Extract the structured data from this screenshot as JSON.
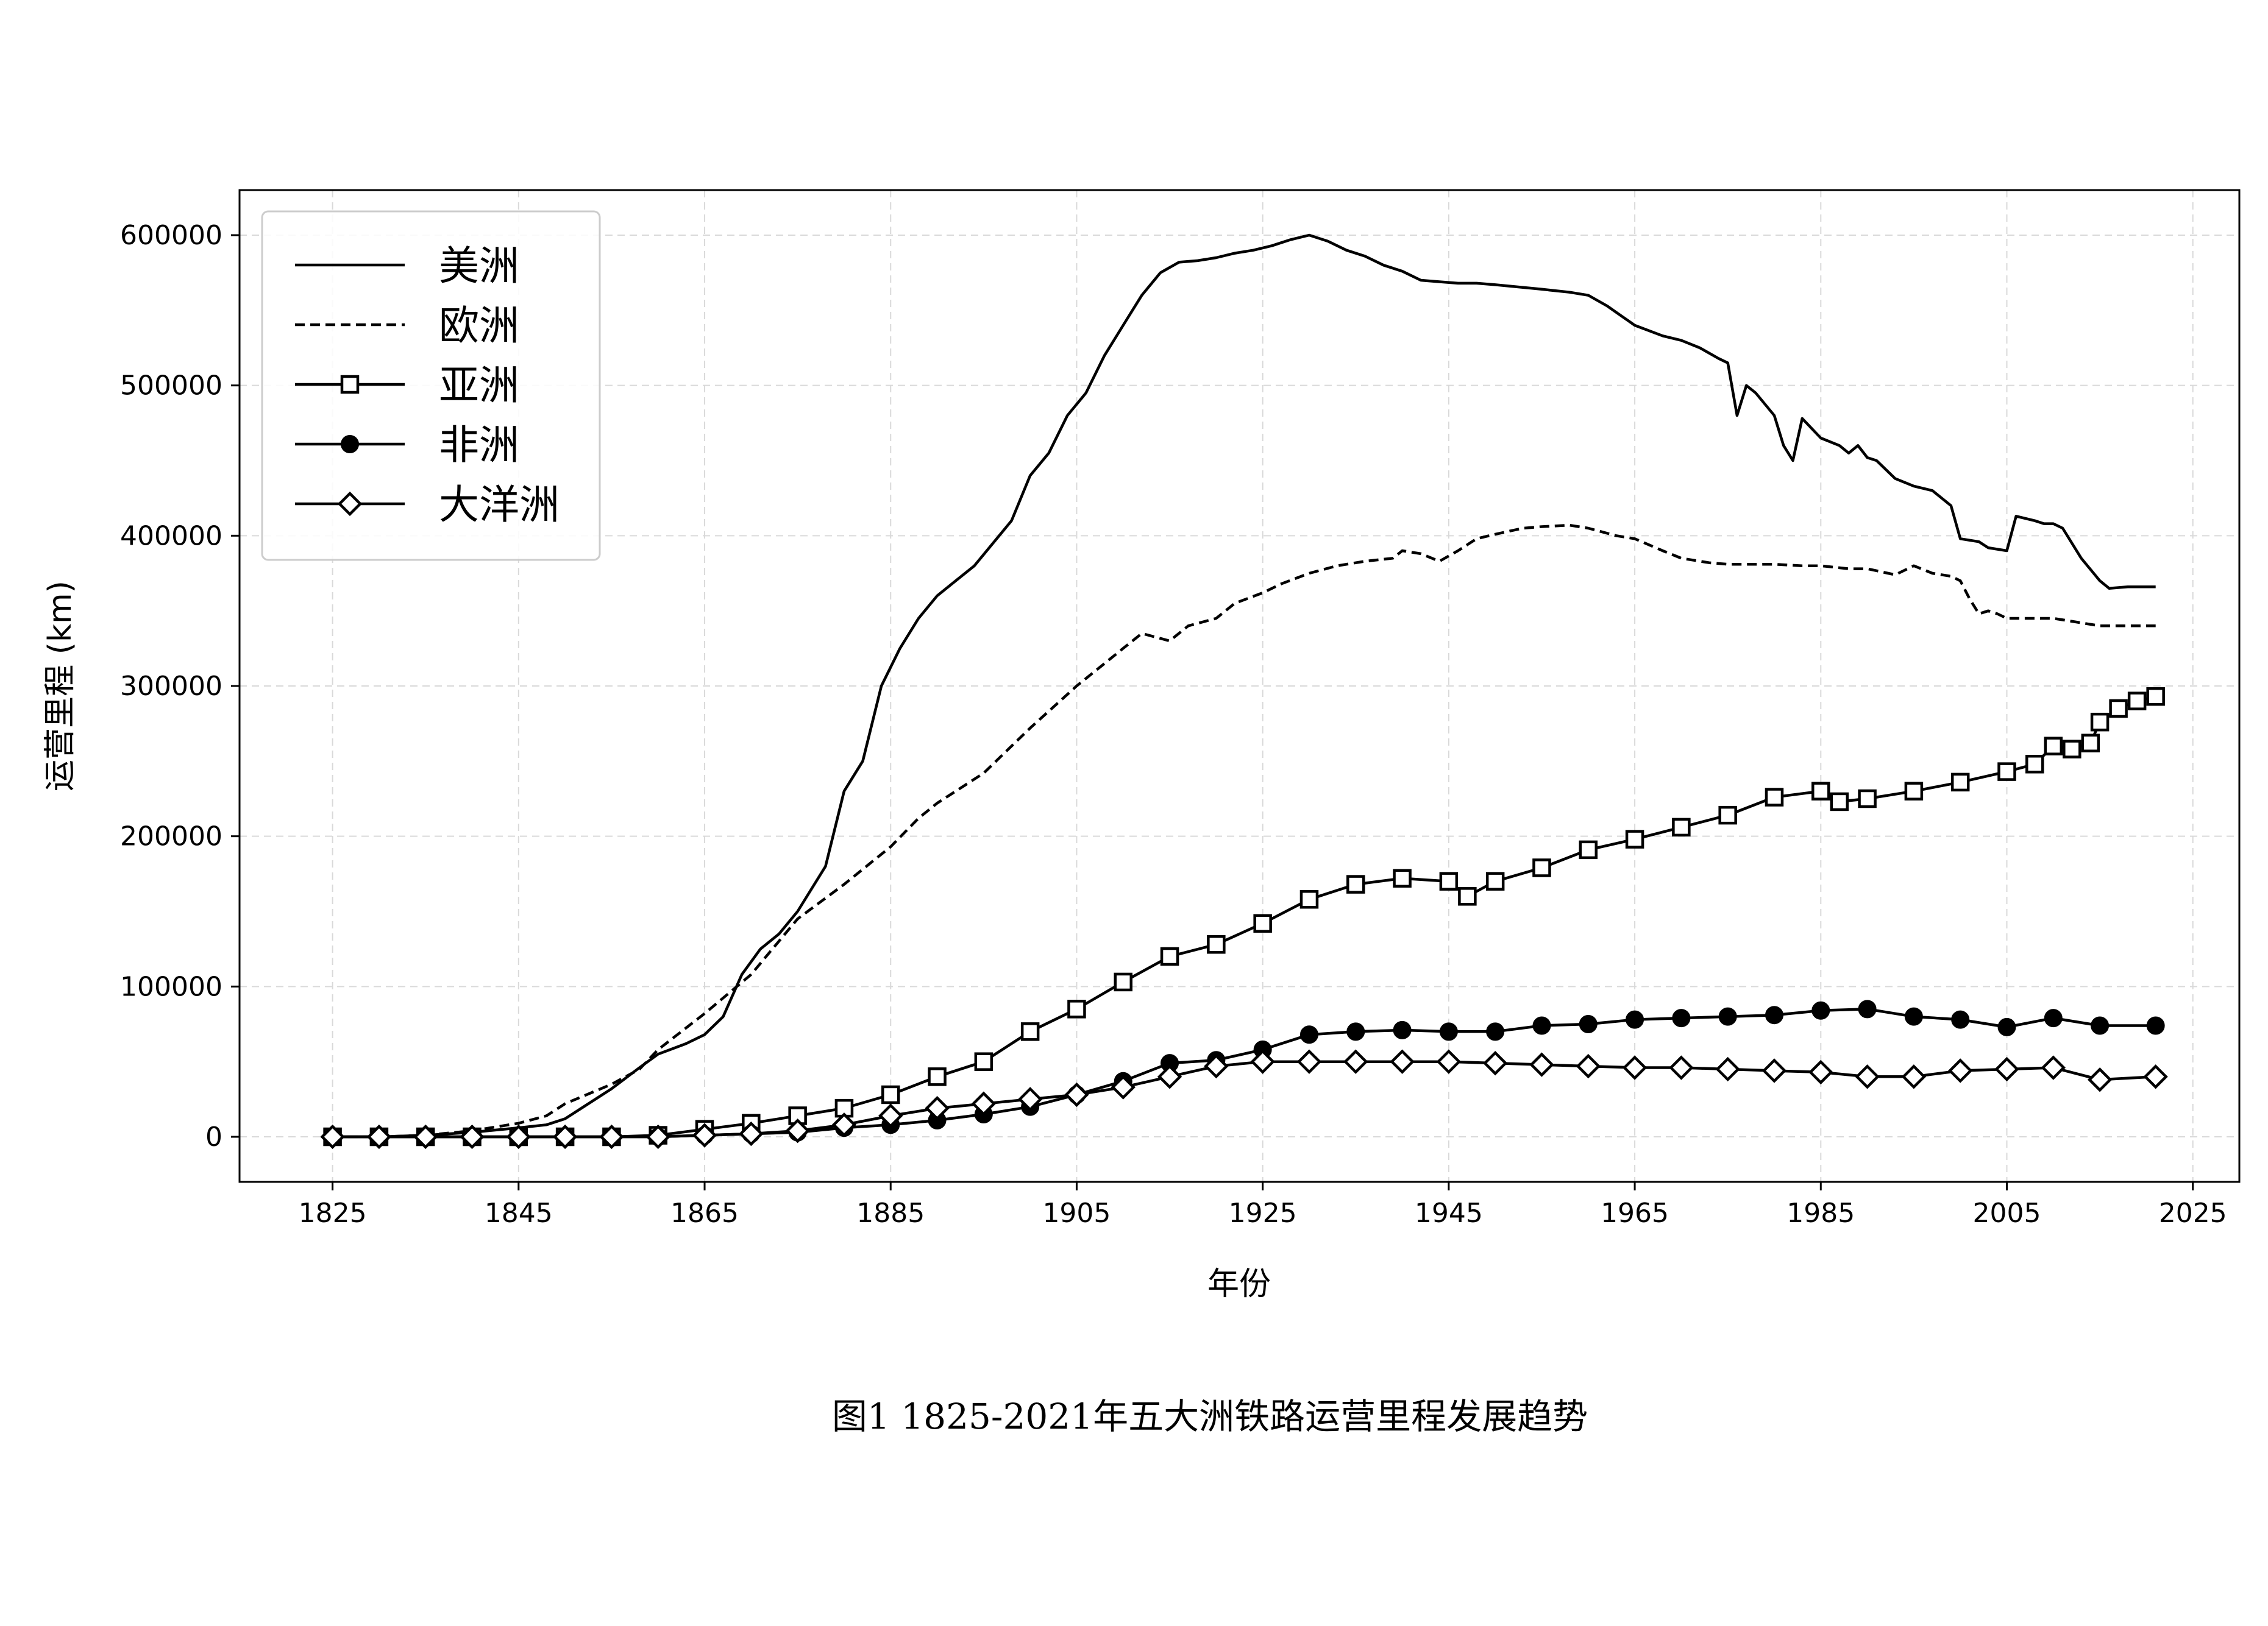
{
  "chart_data": {
    "type": "line",
    "caption": "图1 1825-2021年五大洲铁路运营里程发展趋势",
    "xlabel": "年份",
    "ylabel": "运营里程 (km)",
    "xlim": [
      1815,
      2030
    ],
    "ylim": [
      -30000,
      630000
    ],
    "xticks": [
      1825,
      1845,
      1865,
      1885,
      1905,
      1925,
      1945,
      1965,
      1985,
      2005,
      2025
    ],
    "yticks": [
      0,
      100000,
      200000,
      300000,
      400000,
      500000,
      600000
    ],
    "grid": true,
    "legend_position": "upper-left",
    "series": [
      {
        "name": "美洲",
        "line": "solid",
        "marker": "none",
        "x": [
          1825,
          1830,
          1835,
          1840,
          1845,
          1848,
          1850,
          1852,
          1855,
          1858,
          1860,
          1863,
          1865,
          1867,
          1869,
          1871,
          1873,
          1875,
          1878,
          1880,
          1882,
          1884,
          1886,
          1888,
          1890,
          1892,
          1894,
          1896,
          1898,
          1900,
          1902,
          1904,
          1906,
          1908,
          1910,
          1912,
          1914,
          1916,
          1918,
          1920,
          1922,
          1924,
          1926,
          1928,
          1930,
          1932,
          1934,
          1936,
          1938,
          1940,
          1942,
          1944,
          1946,
          1948,
          1950,
          1955,
          1958,
          1960,
          1962,
          1965,
          1968,
          1970,
          1972,
          1974,
          1975,
          1976,
          1977,
          1978,
          1980,
          1981,
          1982,
          1983,
          1985,
          1987,
          1988,
          1989,
          1990,
          1991,
          1993,
          1995,
          1997,
          1999,
          2000,
          2002,
          2003,
          2005,
          2006,
          2008,
          2009,
          2010,
          2011,
          2013,
          2015,
          2016,
          2018,
          2021
        ],
        "y": [
          0,
          0,
          1000,
          3000,
          6000,
          8000,
          12000,
          20000,
          32000,
          46000,
          55000,
          62000,
          68000,
          80000,
          108000,
          125000,
          135000,
          150000,
          180000,
          230000,
          250000,
          300000,
          325000,
          345000,
          360000,
          370000,
          380000,
          395000,
          410000,
          440000,
          455000,
          480000,
          495000,
          520000,
          540000,
          560000,
          575000,
          582000,
          583000,
          585000,
          588000,
          590000,
          593000,
          597000,
          600000,
          596000,
          590000,
          586000,
          580000,
          576000,
          570000,
          569000,
          568000,
          568000,
          567000,
          564000,
          562000,
          560000,
          553000,
          540000,
          533000,
          530000,
          525000,
          518000,
          515000,
          480000,
          500000,
          495000,
          480000,
          460000,
          450000,
          478000,
          465000,
          460000,
          455000,
          460000,
          452000,
          450000,
          438000,
          433000,
          430000,
          420000,
          398000,
          396000,
          392000,
          390000,
          413000,
          410000,
          408000,
          408000,
          405000,
          385000,
          370000,
          365000,
          366000,
          366000
        ]
      },
      {
        "name": "欧洲",
        "line": "dashed",
        "marker": "none",
        "x": [
          1825,
          1830,
          1835,
          1840,
          1845,
          1848,
          1850,
          1855,
          1858,
          1860,
          1865,
          1870,
          1875,
          1880,
          1885,
          1888,
          1890,
          1895,
          1900,
          1905,
          1908,
          1910,
          1912,
          1915,
          1917,
          1920,
          1922,
          1925,
          1927,
          1930,
          1933,
          1936,
          1939,
          1940,
          1942,
          1944,
          1946,
          1948,
          1950,
          1953,
          1955,
          1958,
          1960,
          1963,
          1965,
          1968,
          1970,
          1973,
          1975,
          1978,
          1980,
          1983,
          1985,
          1988,
          1990,
          1993,
          1995,
          1997,
          1999,
          2000,
          2001,
          2002,
          2003,
          2004,
          2005,
          2006,
          2008,
          2010,
          2012,
          2015,
          2018,
          2021
        ],
        "y": [
          0,
          0,
          1000,
          4000,
          9000,
          14000,
          22000,
          35000,
          45000,
          58000,
          82000,
          108000,
          145000,
          168000,
          193000,
          212000,
          222000,
          242000,
          272000,
          300000,
          315000,
          325000,
          335000,
          330000,
          340000,
          345000,
          355000,
          362000,
          368000,
          375000,
          380000,
          383000,
          385000,
          390000,
          388000,
          383000,
          390000,
          398000,
          401000,
          405000,
          406000,
          407000,
          405000,
          400000,
          398000,
          390000,
          385000,
          382000,
          381000,
          381000,
          381000,
          380000,
          380000,
          378000,
          378000,
          374000,
          380000,
          375000,
          373000,
          370000,
          358000,
          348000,
          350000,
          348000,
          345000,
          345000,
          345000,
          345000,
          343000,
          340000,
          340000,
          340000
        ]
      },
      {
        "name": "亚洲",
        "line": "solid",
        "marker": "square",
        "x": [
          1825,
          1830,
          1835,
          1840,
          1845,
          1850,
          1855,
          1860,
          1865,
          1870,
          1875,
          1880,
          1885,
          1890,
          1895,
          1900,
          1905,
          1910,
          1915,
          1920,
          1925,
          1930,
          1935,
          1940,
          1945,
          1947,
          1950,
          1955,
          1960,
          1965,
          1970,
          1975,
          1980,
          1985,
          1987,
          1990,
          1995,
          2000,
          2005,
          2008,
          2010,
          2012,
          2014,
          2015,
          2017,
          2019,
          2021
        ],
        "y": [
          0,
          0,
          0,
          0,
          0,
          0,
          0,
          1000,
          5000,
          9000,
          14000,
          19000,
          28000,
          40000,
          50000,
          70000,
          85000,
          103000,
          120000,
          128000,
          142000,
          158000,
          168000,
          172000,
          170000,
          160000,
          170000,
          179000,
          191000,
          198000,
          206000,
          214000,
          226000,
          230000,
          223000,
          225000,
          230000,
          236000,
          243000,
          248000,
          260000,
          258000,
          262000,
          276000,
          285000,
          290000,
          293000
        ]
      },
      {
        "name": "非洲",
        "line": "solid",
        "marker": "circle",
        "x": [
          1825,
          1830,
          1835,
          1840,
          1845,
          1850,
          1855,
          1860,
          1865,
          1870,
          1875,
          1880,
          1885,
          1890,
          1895,
          1900,
          1905,
          1910,
          1915,
          1920,
          1925,
          1930,
          1935,
          1940,
          1945,
          1950,
          1955,
          1960,
          1965,
          1970,
          1975,
          1980,
          1985,
          1990,
          1995,
          2000,
          2005,
          2010,
          2015,
          2021
        ],
        "y": [
          0,
          0,
          0,
          0,
          0,
          0,
          0,
          0,
          1000,
          2000,
          3000,
          6000,
          8000,
          11000,
          15000,
          20000,
          28000,
          37000,
          49000,
          51000,
          58000,
          68000,
          70000,
          71000,
          70000,
          70000,
          74000,
          75000,
          78000,
          79000,
          80000,
          81000,
          84000,
          85000,
          80000,
          78000,
          73000,
          79000,
          74000,
          74000
        ]
      },
      {
        "name": "大洋洲",
        "line": "solid",
        "marker": "diamond",
        "x": [
          1825,
          1830,
          1835,
          1840,
          1845,
          1850,
          1855,
          1860,
          1865,
          1870,
          1875,
          1880,
          1885,
          1890,
          1895,
          1900,
          1905,
          1910,
          1915,
          1920,
          1925,
          1930,
          1935,
          1940,
          1945,
          1950,
          1955,
          1960,
          1965,
          1970,
          1975,
          1980,
          1985,
          1990,
          1995,
          2000,
          2005,
          2010,
          2015,
          2021
        ],
        "y": [
          0,
          0,
          0,
          0,
          0,
          0,
          0,
          0,
          1000,
          2000,
          4000,
          8000,
          14000,
          19000,
          22000,
          25000,
          28000,
          33000,
          40000,
          47000,
          50000,
          50000,
          50000,
          50000,
          50000,
          49000,
          48000,
          47000,
          46000,
          46000,
          45000,
          44000,
          43000,
          40000,
          40000,
          44000,
          45000,
          46000,
          38000,
          40000
        ]
      }
    ]
  }
}
